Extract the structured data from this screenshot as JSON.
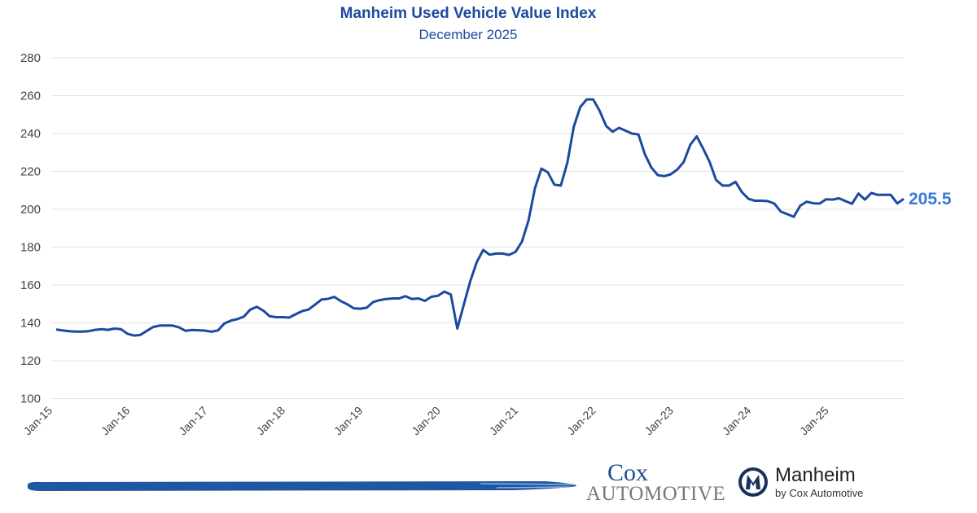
{
  "chart_data": {
    "type": "line",
    "title": "Manheim Used Vehicle Value Index",
    "subtitle": "December 2025",
    "xlabel": "",
    "ylabel": "",
    "ylim": [
      100,
      280
    ],
    "yticks": [
      100,
      120,
      140,
      160,
      180,
      200,
      220,
      240,
      260,
      280
    ],
    "xtick_labels": [
      "Jan-15",
      "Jan-16",
      "Jan-17",
      "Jan-18",
      "Jan-19",
      "Jan-20",
      "Jan-21",
      "Jan-22",
      "Jan-23",
      "Jan-24",
      "Jan-25"
    ],
    "x_start": "Jan-15",
    "x_end": "Dec-25",
    "grid": true,
    "line_color": "#1b4aa0",
    "end_label": "205.5",
    "end_label_color": "#3a7bd5",
    "values": [
      136.5,
      136,
      135.6,
      135.4,
      135.4,
      135.6,
      136.3,
      136.7,
      136.3,
      137,
      136.7,
      134.3,
      133.3,
      133.6,
      135.8,
      137.8,
      138.6,
      138.6,
      138.6,
      137.6,
      135.8,
      136.2,
      136.1,
      135.9,
      135.3,
      136,
      139.7,
      141.2,
      142,
      143.3,
      147,
      148.5,
      146.5,
      143.5,
      143,
      143,
      142.8,
      144.5,
      146.2,
      147,
      149.6,
      152.3,
      152.7,
      153.7,
      151.5,
      149.8,
      147.7,
      147.5,
      148,
      151,
      152,
      152.6,
      152.9,
      152.9,
      154.1,
      152.6,
      152.9,
      151.6,
      153.8,
      154.3,
      156.5,
      155,
      137,
      149.5,
      162,
      172,
      178.5,
      176,
      176.6,
      176.6,
      175.9,
      177.5,
      183,
      194,
      211,
      221.5,
      219.5,
      213,
      212.5,
      224.5,
      243.5,
      254,
      258,
      258,
      252,
      244,
      241,
      243,
      241.5,
      240,
      239.5,
      229,
      222,
      218,
      217.5,
      218.5,
      221,
      225,
      234,
      238.5,
      232,
      225,
      215.5,
      212.5,
      212.5,
      214.5,
      209,
      205.5,
      204.5,
      204.5,
      204.3,
      203,
      198.8,
      197.4,
      196,
      201.9,
      204,
      203.2,
      203,
      205.3,
      205.1,
      205.8,
      204.3,
      202.9,
      208.3,
      205.1,
      208.6,
      207.6,
      207.6,
      207.6,
      203.1,
      205.5
    ]
  },
  "footer": {
    "cox_line1": "Cox",
    "cox_line2": "Automotive",
    "manheim_name": "Manheim",
    "manheim_tagline": "by Cox Automotive"
  }
}
